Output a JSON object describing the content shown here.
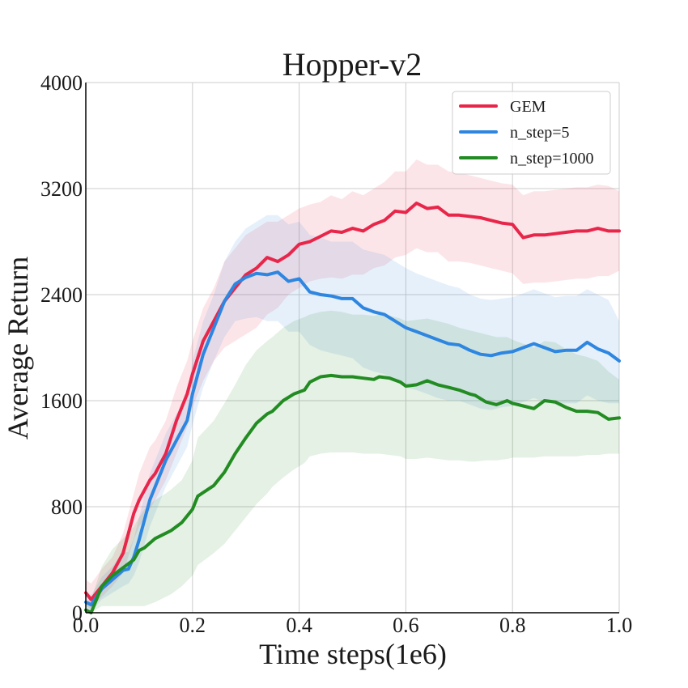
{
  "chart_data": {
    "type": "line",
    "title": "Hopper-v2",
    "xlabel": "Time steps(1e6)",
    "ylabel": "Average Return",
    "xlim": [
      0,
      1.0
    ],
    "ylim": [
      0,
      4000
    ],
    "xticks": [
      0.0,
      0.2,
      0.4,
      0.6,
      0.8,
      1.0
    ],
    "xtick_labels": [
      "0.0",
      "0.2",
      "0.4",
      "0.6",
      "0.8",
      "1.0"
    ],
    "yticks": [
      0,
      800,
      1600,
      2400,
      3200,
      4000
    ],
    "ytick_labels": [
      "0",
      "800",
      "1600",
      "2400",
      "3200",
      "4000"
    ],
    "grid": true,
    "legend_position": "top-right",
    "series": [
      {
        "name": "GEM",
        "color": "#e8264a",
        "x": [
          0.0,
          0.01,
          0.03,
          0.05,
          0.07,
          0.09,
          0.1,
          0.12,
          0.13,
          0.15,
          0.17,
          0.19,
          0.2,
          0.22,
          0.24,
          0.26,
          0.28,
          0.3,
          0.32,
          0.34,
          0.36,
          0.38,
          0.4,
          0.42,
          0.44,
          0.46,
          0.48,
          0.5,
          0.52,
          0.54,
          0.56,
          0.58,
          0.6,
          0.62,
          0.64,
          0.66,
          0.68,
          0.7,
          0.72,
          0.74,
          0.76,
          0.78,
          0.8,
          0.82,
          0.84,
          0.86,
          0.88,
          0.9,
          0.92,
          0.94,
          0.96,
          0.98,
          1.0
        ],
        "y": [
          150,
          100,
          200,
          300,
          450,
          750,
          850,
          1000,
          1050,
          1200,
          1450,
          1650,
          1800,
          2050,
          2200,
          2350,
          2450,
          2550,
          2600,
          2680,
          2650,
          2700,
          2780,
          2800,
          2840,
          2880,
          2870,
          2900,
          2880,
          2930,
          2960,
          3030,
          3020,
          3090,
          3050,
          3060,
          3000,
          3000,
          2990,
          2980,
          2960,
          2940,
          2930,
          2830,
          2850,
          2850,
          2860,
          2870,
          2880,
          2880,
          2900,
          2880,
          2880
        ],
        "lower": [
          50,
          30,
          120,
          200,
          300,
          550,
          650,
          780,
          850,
          1000,
          1200,
          1400,
          1550,
          1750,
          1900,
          2000,
          2050,
          2100,
          2150,
          2250,
          2300,
          2400,
          2450,
          2500,
          2520,
          2530,
          2520,
          2550,
          2550,
          2600,
          2620,
          2680,
          2700,
          2750,
          2720,
          2720,
          2650,
          2650,
          2640,
          2620,
          2600,
          2580,
          2560,
          2480,
          2490,
          2490,
          2500,
          2510,
          2520,
          2520,
          2540,
          2540,
          2580
        ],
        "upper": [
          250,
          220,
          330,
          420,
          600,
          900,
          1050,
          1250,
          1300,
          1450,
          1700,
          1900,
          2050,
          2300,
          2450,
          2650,
          2750,
          2850,
          2900,
          2950,
          2950,
          3000,
          3050,
          3080,
          3100,
          3150,
          3120,
          3180,
          3150,
          3200,
          3250,
          3330,
          3330,
          3420,
          3380,
          3380,
          3330,
          3320,
          3300,
          3280,
          3260,
          3240,
          3230,
          3150,
          3180,
          3180,
          3190,
          3200,
          3210,
          3210,
          3230,
          3220,
          3180
        ]
      },
      {
        "name": "n_step=5",
        "color": "#2e86e0",
        "x": [
          0.0,
          0.01,
          0.03,
          0.05,
          0.07,
          0.08,
          0.09,
          0.1,
          0.12,
          0.13,
          0.15,
          0.17,
          0.19,
          0.2,
          0.22,
          0.24,
          0.26,
          0.28,
          0.3,
          0.32,
          0.34,
          0.36,
          0.38,
          0.4,
          0.42,
          0.44,
          0.46,
          0.48,
          0.5,
          0.52,
          0.54,
          0.56,
          0.58,
          0.6,
          0.62,
          0.64,
          0.66,
          0.68,
          0.7,
          0.72,
          0.74,
          0.76,
          0.78,
          0.8,
          0.82,
          0.84,
          0.86,
          0.88,
          0.9,
          0.92,
          0.94,
          0.96,
          0.98,
          1.0
        ],
        "y": [
          80,
          60,
          180,
          250,
          320,
          330,
          420,
          550,
          850,
          950,
          1150,
          1300,
          1450,
          1650,
          1950,
          2150,
          2350,
          2480,
          2530,
          2560,
          2550,
          2570,
          2500,
          2520,
          2420,
          2400,
          2390,
          2370,
          2370,
          2300,
          2270,
          2250,
          2200,
          2150,
          2120,
          2090,
          2060,
          2030,
          2020,
          1980,
          1950,
          1940,
          1960,
          1970,
          2000,
          2030,
          2000,
          1970,
          1980,
          1980,
          2040,
          1990,
          1960,
          1900
        ],
        "lower": [
          20,
          10,
          100,
          150,
          200,
          220,
          280,
          380,
          650,
          750,
          950,
          1100,
          1250,
          1420,
          1700,
          1900,
          2080,
          2200,
          2220,
          2230,
          2200,
          2200,
          2120,
          2120,
          2020,
          1980,
          1960,
          1940,
          1920,
          1850,
          1820,
          1800,
          1750,
          1700,
          1680,
          1650,
          1620,
          1600,
          1600,
          1570,
          1540,
          1530,
          1550,
          1560,
          1590,
          1620,
          1590,
          1570,
          1580,
          1580,
          1640,
          1600,
          1580,
          1580
        ],
        "upper": [
          150,
          130,
          270,
          350,
          450,
          460,
          560,
          720,
          1050,
          1150,
          1350,
          1500,
          1650,
          1900,
          2200,
          2400,
          2650,
          2800,
          2900,
          2950,
          3000,
          3000,
          2930,
          2950,
          2850,
          2830,
          2800,
          2800,
          2800,
          2740,
          2720,
          2700,
          2650,
          2600,
          2560,
          2530,
          2500,
          2470,
          2450,
          2400,
          2370,
          2360,
          2370,
          2380,
          2410,
          2440,
          2410,
          2380,
          2390,
          2390,
          2440,
          2400,
          2360,
          2200
        ]
      },
      {
        "name": "n_step=1000",
        "color": "#228b22",
        "x": [
          0.0,
          0.01,
          0.03,
          0.05,
          0.07,
          0.09,
          0.1,
          0.11,
          0.13,
          0.15,
          0.16,
          0.18,
          0.2,
          0.21,
          0.24,
          0.26,
          0.28,
          0.3,
          0.32,
          0.34,
          0.35,
          0.37,
          0.39,
          0.41,
          0.42,
          0.44,
          0.46,
          0.48,
          0.5,
          0.52,
          0.54,
          0.55,
          0.57,
          0.59,
          0.6,
          0.62,
          0.64,
          0.66,
          0.68,
          0.7,
          0.72,
          0.73,
          0.75,
          0.77,
          0.79,
          0.8,
          0.82,
          0.84,
          0.86,
          0.88,
          0.9,
          0.92,
          0.94,
          0.96,
          0.98,
          1.0
        ],
        "y": [
          20,
          0,
          200,
          280,
          340,
          400,
          470,
          490,
          560,
          600,
          620,
          680,
          780,
          880,
          960,
          1060,
          1200,
          1320,
          1430,
          1500,
          1520,
          1600,
          1650,
          1680,
          1740,
          1780,
          1790,
          1780,
          1780,
          1770,
          1760,
          1780,
          1770,
          1740,
          1710,
          1720,
          1750,
          1720,
          1700,
          1680,
          1650,
          1640,
          1590,
          1570,
          1600,
          1580,
          1560,
          1540,
          1600,
          1590,
          1550,
          1520,
          1520,
          1510,
          1460,
          1470
        ],
        "lower": [
          0,
          0,
          50,
          50,
          50,
          50,
          50,
          50,
          80,
          120,
          140,
          200,
          280,
          360,
          450,
          520,
          620,
          720,
          820,
          900,
          950,
          1020,
          1080,
          1130,
          1180,
          1200,
          1210,
          1210,
          1210,
          1200,
          1200,
          1200,
          1190,
          1180,
          1160,
          1160,
          1170,
          1160,
          1150,
          1150,
          1140,
          1140,
          1150,
          1150,
          1160,
          1170,
          1170,
          1170,
          1180,
          1180,
          1180,
          1180,
          1190,
          1190,
          1200,
          1200
        ],
        "upper": [
          80,
          100,
          350,
          480,
          560,
          650,
          720,
          780,
          850,
          900,
          930,
          1000,
          1150,
          1320,
          1450,
          1580,
          1720,
          1870,
          1980,
          2050,
          2080,
          2150,
          2200,
          2230,
          2250,
          2270,
          2280,
          2270,
          2250,
          2250,
          2240,
          2250,
          2240,
          2220,
          2200,
          2210,
          2220,
          2200,
          2180,
          2150,
          2130,
          2120,
          2100,
          2080,
          2080,
          2060,
          2030,
          2000,
          2050,
          2040,
          1990,
          1950,
          1930,
          1900,
          1820,
          1760
        ]
      }
    ]
  }
}
